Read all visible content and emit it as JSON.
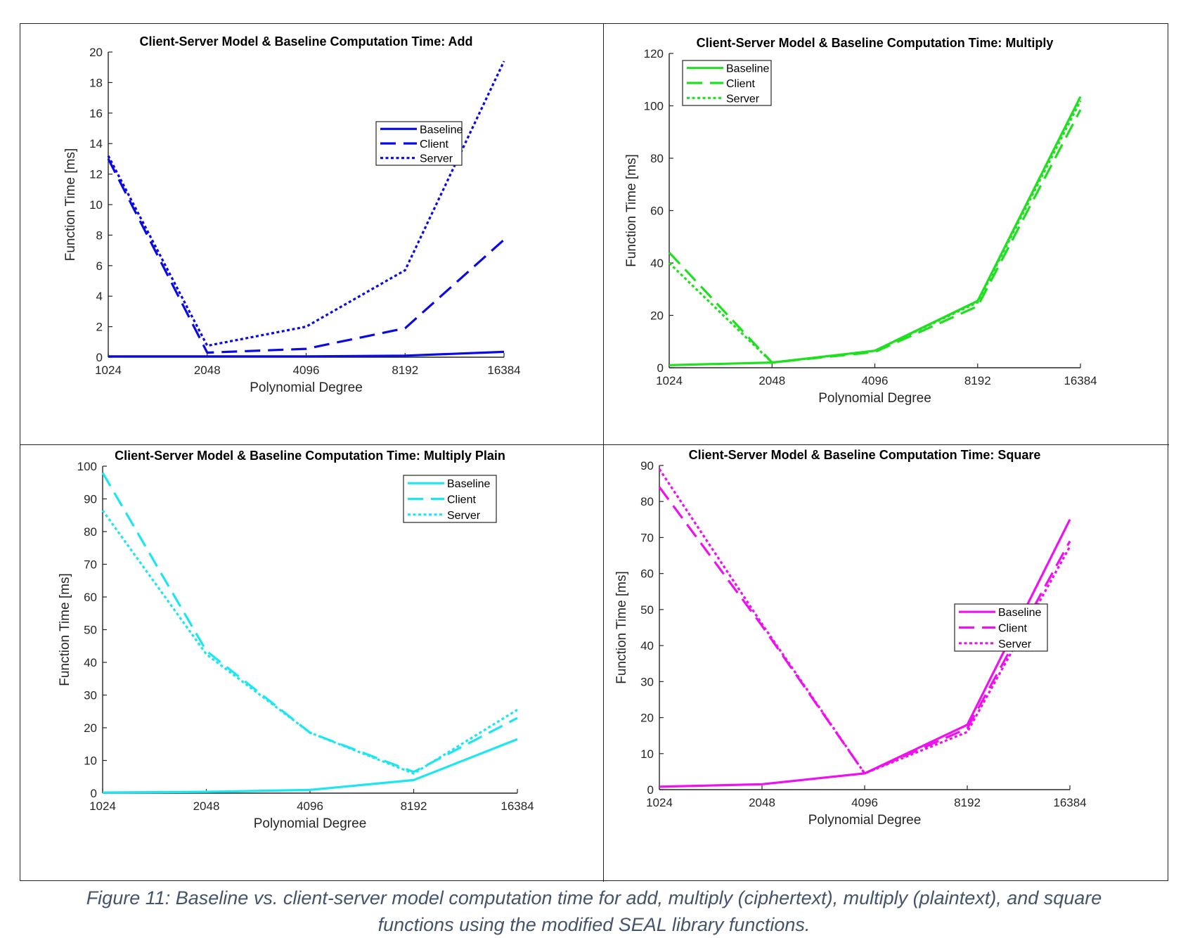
{
  "figure": {
    "caption_line1": "Figure 11: Baseline vs. client-server model computation time for add, multiply (ciphertext), multiply (plaintext), and square",
    "caption_line2": "functions using the modified SEAL library functions."
  },
  "chart_data": [
    {
      "type": "line",
      "title": "Client-Server Model & Baseline Computation Time: Add",
      "xlabel": "Polynomial Degree",
      "ylabel": "Function Time [ms]",
      "categories": [
        "1024",
        "2048",
        "4096",
        "8192",
        "16384"
      ],
      "ylim": [
        0,
        20
      ],
      "yticks": [
        0,
        2,
        4,
        6,
        8,
        10,
        12,
        14,
        16,
        18,
        20
      ],
      "color": "#0a0ae6",
      "legend_position": "upper-right-inner",
      "series": [
        {
          "name": "Baseline",
          "style": "solid",
          "values": [
            0.05,
            0.05,
            0.05,
            0.1,
            0.35
          ]
        },
        {
          "name": "Client",
          "style": "dashed",
          "values": [
            13.0,
            0.3,
            0.55,
            1.9,
            7.7
          ]
        },
        {
          "name": "Server",
          "style": "dotted",
          "values": [
            13.2,
            0.75,
            2.0,
            5.7,
            19.4
          ]
        }
      ]
    },
    {
      "type": "line",
      "title": "Client-Server Model & Baseline Computation Time: Multiply",
      "xlabel": "Polynomial Degree",
      "ylabel": "Function Time [ms]",
      "categories": [
        "1024",
        "2048",
        "4096",
        "8192",
        "16384"
      ],
      "ylim": [
        0,
        120
      ],
      "yticks": [
        0,
        20,
        40,
        60,
        80,
        100,
        120
      ],
      "color": "#1fe01f",
      "legend_position": "top-left",
      "series": [
        {
          "name": "Baseline",
          "style": "solid",
          "values": [
            1.0,
            2.0,
            6.5,
            25.5,
            103.5
          ]
        },
        {
          "name": "Client",
          "style": "dashed",
          "values": [
            44.0,
            2.0,
            6.0,
            23.5,
            98.5
          ]
        },
        {
          "name": "Server",
          "style": "dotted",
          "values": [
            40.0,
            2.0,
            6.5,
            25.0,
            102.0
          ]
        }
      ]
    },
    {
      "type": "line",
      "title": "Client-Server Model & Baseline Computation Time: Multiply Plain",
      "xlabel": "Polynomial Degree",
      "ylabel": "Function Time [ms]",
      "categories": [
        "1024",
        "2048",
        "4096",
        "8192",
        "16384"
      ],
      "ylim": [
        0,
        100
      ],
      "yticks": [
        0,
        10,
        20,
        30,
        40,
        50,
        60,
        70,
        80,
        90,
        100
      ],
      "color": "#1ee6f0",
      "legend_position": "top-right",
      "series": [
        {
          "name": "Baseline",
          "style": "solid",
          "values": [
            0.2,
            0.4,
            1.0,
            4.0,
            16.5
          ]
        },
        {
          "name": "Client",
          "style": "dashed",
          "values": [
            98.0,
            43.5,
            18.5,
            6.5,
            23.0
          ]
        },
        {
          "name": "Server",
          "style": "dotted",
          "values": [
            86.5,
            42.5,
            18.5,
            6.0,
            25.5
          ]
        }
      ]
    },
    {
      "type": "line",
      "title": "Client-Server Model & Baseline Computation Time: Square",
      "xlabel": "Polynomial Degree",
      "ylabel": "Function Time [ms]",
      "categories": [
        "1024",
        "2048",
        "4096",
        "8192",
        "16384"
      ],
      "ylim": [
        0,
        90
      ],
      "yticks": [
        0,
        10,
        20,
        30,
        40,
        50,
        60,
        70,
        80,
        90
      ],
      "color": "#ee10ee",
      "legend_position": "right",
      "series": [
        {
          "name": "Baseline",
          "style": "solid",
          "values": [
            0.8,
            1.5,
            4.5,
            18.0,
            75.0
          ]
        },
        {
          "name": "Client",
          "style": "dashed",
          "values": [
            84.0,
            45.5,
            4.5,
            17.0,
            69.0
          ]
        },
        {
          "name": "Server",
          "style": "dotted",
          "values": [
            89.0,
            46.0,
            4.5,
            16.0,
            67.5
          ]
        }
      ]
    }
  ]
}
